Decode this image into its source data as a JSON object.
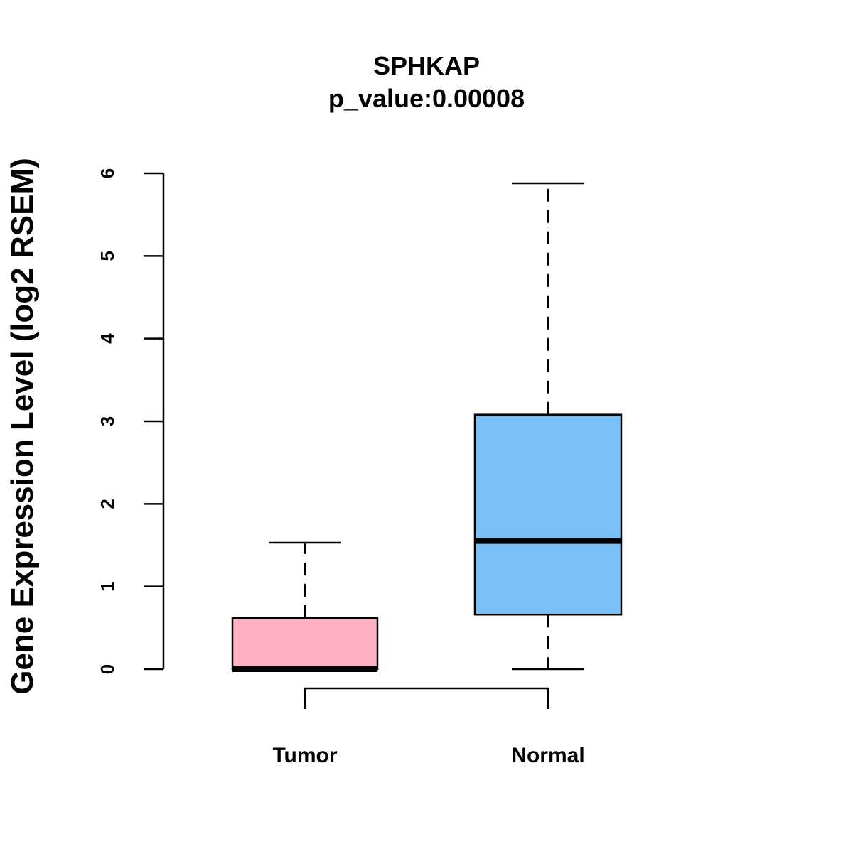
{
  "chart_data": {
    "type": "box",
    "title": "SPHKAP",
    "subtitle": "p_value:0.00008",
    "xlabel": "",
    "ylabel": "Gene Expression Level (log2 RSEM)",
    "ylim": [
      0,
      6
    ],
    "yticks": [
      "0",
      "1",
      "2",
      "3",
      "4",
      "5",
      "6"
    ],
    "grid": false,
    "categories": [
      "Tumor",
      "Normal"
    ],
    "boxes": [
      {
        "name": "Tumor",
        "whisker_low": 0,
        "q1": 0,
        "median": 0,
        "q3": 0.62,
        "whisker_high": 1.53,
        "color": "#FFB0C1"
      },
      {
        "name": "Normal",
        "whisker_low": 0,
        "q1": 0.66,
        "median": 1.55,
        "q3": 3.08,
        "whisker_high": 5.88,
        "color": "#78C0F8"
      }
    ],
    "comparison_bracket": [
      "Tumor",
      "Normal"
    ]
  }
}
